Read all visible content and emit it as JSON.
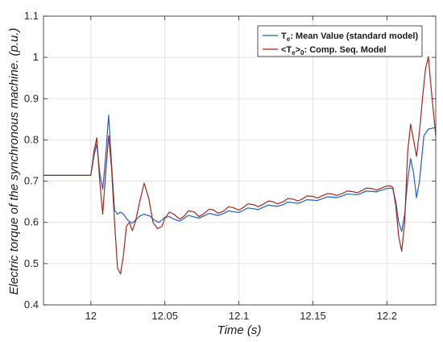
{
  "chart_data": {
    "type": "line",
    "xlabel": "Time (s)",
    "ylabel": "Electric torque of the synchronous machine. (p.u.)",
    "xlim": [
      11.968,
      12.233
    ],
    "ylim": [
      0.4,
      1.1
    ],
    "xticks": [
      12,
      12.05,
      12.1,
      12.15,
      12.2
    ],
    "xtick_labels": [
      "12",
      "12.05",
      "12.1",
      "12.15",
      "12.2"
    ],
    "yticks": [
      0.4,
      0.5,
      0.6,
      0.7,
      0.8,
      0.9,
      1.0,
      1.1
    ],
    "ytick_labels": [
      "0.4",
      "0.5",
      "0.6",
      "0.7",
      "0.8",
      "0.9",
      "1",
      "1.1"
    ],
    "grid": true,
    "legend_position": "top-right",
    "series": [
      {
        "name": "T_e: Mean Value (standard model)",
        "legend": {
          "main": "T",
          "sub": "e",
          "rest": ": Mean Value (standard model)"
        },
        "color": "#1f5fbf",
        "x": [
          11.968,
          12.0,
          12.002,
          12.004,
          12.006,
          12.008,
          12.01,
          12.012,
          12.014,
          12.016,
          12.018,
          12.02,
          12.022,
          12.025,
          12.028,
          12.03,
          12.033,
          12.036,
          12.04,
          12.043,
          12.046,
          12.05,
          12.053,
          12.056,
          12.06,
          12.063,
          12.066,
          12.07,
          12.073,
          12.076,
          12.08,
          12.083,
          12.086,
          12.09,
          12.093,
          12.096,
          12.1,
          12.103,
          12.106,
          12.11,
          12.113,
          12.116,
          12.12,
          12.123,
          12.126,
          12.13,
          12.133,
          12.136,
          12.14,
          12.143,
          12.146,
          12.15,
          12.153,
          12.156,
          12.16,
          12.163,
          12.166,
          12.17,
          12.173,
          12.176,
          12.18,
          12.183,
          12.186,
          12.19,
          12.193,
          12.196,
          12.2,
          12.202,
          12.204,
          12.206,
          12.208,
          12.21,
          12.212,
          12.214,
          12.216,
          12.218,
          12.22,
          12.222,
          12.225,
          12.228,
          12.233
        ],
        "y": [
          0.714,
          0.714,
          0.76,
          0.79,
          0.72,
          0.68,
          0.76,
          0.86,
          0.74,
          0.63,
          0.62,
          0.625,
          0.62,
          0.605,
          0.598,
          0.605,
          0.615,
          0.62,
          0.615,
          0.605,
          0.6,
          0.612,
          0.614,
          0.608,
          0.603,
          0.61,
          0.617,
          0.613,
          0.61,
          0.615,
          0.622,
          0.619,
          0.617,
          0.622,
          0.628,
          0.626,
          0.624,
          0.629,
          0.635,
          0.633,
          0.631,
          0.636,
          0.642,
          0.64,
          0.639,
          0.643,
          0.649,
          0.648,
          0.646,
          0.65,
          0.655,
          0.654,
          0.653,
          0.657,
          0.662,
          0.661,
          0.66,
          0.664,
          0.669,
          0.668,
          0.667,
          0.671,
          0.676,
          0.675,
          0.674,
          0.678,
          0.682,
          0.683,
          0.682,
          0.65,
          0.6,
          0.578,
          0.62,
          0.7,
          0.755,
          0.72,
          0.66,
          0.7,
          0.81,
          0.826,
          0.83
        ]
      },
      {
        "name": "<T_e>_0: Comp. Seq. Model",
        "legend": {
          "main": "<T",
          "sub": "e",
          "mid": ">",
          "sub2": "0",
          "rest": ": Comp. Seq. Model"
        },
        "color": "#a0281e",
        "x": [
          11.968,
          12.0,
          12.002,
          12.004,
          12.006,
          12.008,
          12.01,
          12.012,
          12.014,
          12.016,
          12.018,
          12.02,
          12.022,
          12.024,
          12.026,
          12.028,
          12.03,
          12.033,
          12.036,
          12.039,
          12.042,
          12.045,
          12.048,
          12.05,
          12.053,
          12.056,
          12.06,
          12.063,
          12.066,
          12.07,
          12.073,
          12.076,
          12.08,
          12.083,
          12.086,
          12.09,
          12.093,
          12.096,
          12.1,
          12.103,
          12.106,
          12.11,
          12.113,
          12.116,
          12.12,
          12.123,
          12.126,
          12.13,
          12.133,
          12.136,
          12.14,
          12.143,
          12.146,
          12.15,
          12.153,
          12.156,
          12.16,
          12.163,
          12.166,
          12.17,
          12.173,
          12.176,
          12.18,
          12.183,
          12.186,
          12.19,
          12.193,
          12.196,
          12.2,
          12.202,
          12.204,
          12.206,
          12.208,
          12.21,
          12.212,
          12.214,
          12.216,
          12.218,
          12.22,
          12.222,
          12.224,
          12.226,
          12.228,
          12.23,
          12.233
        ],
        "y": [
          0.714,
          0.714,
          0.77,
          0.805,
          0.7,
          0.62,
          0.72,
          0.81,
          0.73,
          0.6,
          0.49,
          0.475,
          0.52,
          0.59,
          0.6,
          0.58,
          0.6,
          0.65,
          0.695,
          0.66,
          0.6,
          0.585,
          0.59,
          0.61,
          0.625,
          0.62,
          0.608,
          0.615,
          0.628,
          0.625,
          0.614,
          0.62,
          0.632,
          0.63,
          0.622,
          0.628,
          0.638,
          0.636,
          0.63,
          0.636,
          0.645,
          0.643,
          0.638,
          0.643,
          0.652,
          0.65,
          0.645,
          0.65,
          0.658,
          0.657,
          0.652,
          0.657,
          0.664,
          0.663,
          0.659,
          0.664,
          0.67,
          0.669,
          0.665,
          0.67,
          0.676,
          0.675,
          0.672,
          0.677,
          0.683,
          0.682,
          0.678,
          0.683,
          0.688,
          0.689,
          0.685,
          0.64,
          0.565,
          0.53,
          0.6,
          0.77,
          0.838,
          0.8,
          0.76,
          0.82,
          0.9,
          0.97,
          1.002,
          0.92,
          0.81
        ]
      }
    ]
  }
}
